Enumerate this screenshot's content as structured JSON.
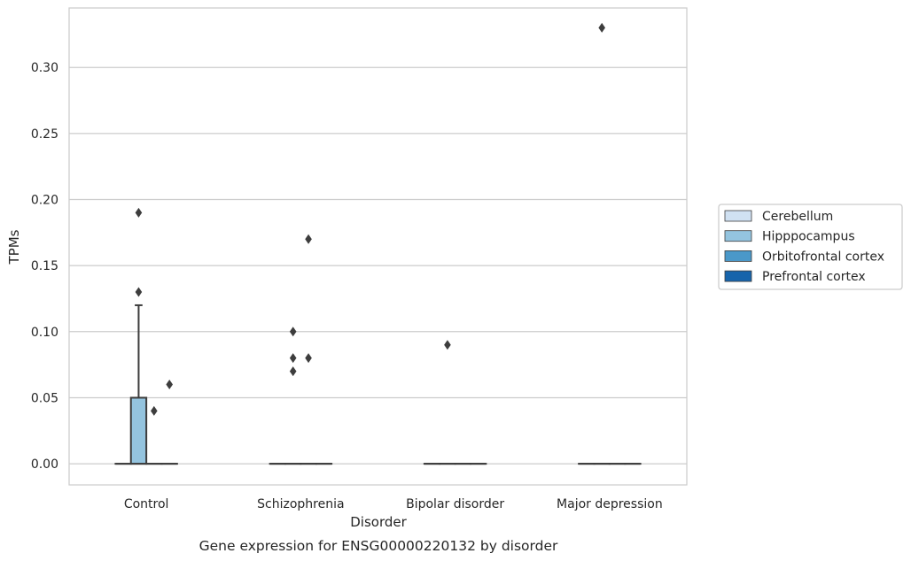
{
  "chart_data": {
    "type": "box",
    "title": "Gene expression for ENSG00000220132 by disorder",
    "xlabel": "Disorder",
    "ylabel": "TPMs",
    "ylim": [
      -0.016,
      0.345
    ],
    "yticks": [
      0.0,
      0.05,
      0.1,
      0.15,
      0.2,
      0.25,
      0.3
    ],
    "ytick_labels": [
      "0.00",
      "0.05",
      "0.10",
      "0.15",
      "0.20",
      "0.25",
      "0.30"
    ],
    "grid": "horizontal",
    "legend_position": "right",
    "categories": [
      "Control",
      "Schizophrenia",
      "Bipolar disorder",
      "Major depression"
    ],
    "series": [
      {
        "name": "Cerebellum",
        "color": "#d0e1f2",
        "boxes": [
          {
            "q1": 0,
            "median": 0,
            "q3": 0,
            "whisker_low": 0,
            "whisker_high": 0,
            "outliers": []
          },
          {
            "q1": 0,
            "median": 0,
            "q3": 0,
            "whisker_low": 0,
            "whisker_high": 0,
            "outliers": []
          },
          {
            "q1": 0,
            "median": 0,
            "q3": 0,
            "whisker_low": 0,
            "whisker_high": 0,
            "outliers": []
          },
          {
            "q1": 0,
            "median": 0,
            "q3": 0,
            "whisker_low": 0,
            "whisker_high": 0,
            "outliers": []
          }
        ]
      },
      {
        "name": "Hipppocampus",
        "color": "#94c4df",
        "boxes": [
          {
            "q1": 0,
            "median": 0,
            "q3": 0.05,
            "whisker_low": 0,
            "whisker_high": 0.12,
            "outliers": [
              0.13,
              0.19
            ]
          },
          {
            "q1": 0,
            "median": 0,
            "q3": 0,
            "whisker_low": 0,
            "whisker_high": 0,
            "outliers": [
              0.07,
              0.08,
              0.1
            ]
          },
          {
            "q1": 0,
            "median": 0,
            "q3": 0,
            "whisker_low": 0,
            "whisker_high": 0,
            "outliers": [
              0.09
            ]
          },
          {
            "q1": 0,
            "median": 0,
            "q3": 0,
            "whisker_low": 0,
            "whisker_high": 0,
            "outliers": [
              0.33
            ]
          }
        ]
      },
      {
        "name": "Orbitofrontal cortex",
        "color": "#4a98c9",
        "boxes": [
          {
            "q1": 0,
            "median": 0,
            "q3": 0,
            "whisker_low": 0,
            "whisker_high": 0,
            "outliers": [
              0.04
            ]
          },
          {
            "q1": 0,
            "median": 0,
            "q3": 0,
            "whisker_low": 0,
            "whisker_high": 0,
            "outliers": [
              0.08,
              0.17
            ]
          },
          {
            "q1": 0,
            "median": 0,
            "q3": 0,
            "whisker_low": 0,
            "whisker_high": 0,
            "outliers": []
          },
          {
            "q1": 0,
            "median": 0,
            "q3": 0,
            "whisker_low": 0,
            "whisker_high": 0,
            "outliers": []
          }
        ]
      },
      {
        "name": "Prefrontal cortex",
        "color": "#1764ab",
        "boxes": [
          {
            "q1": 0,
            "median": 0,
            "q3": 0,
            "whisker_low": 0,
            "whisker_high": 0,
            "outliers": [
              0.06
            ]
          },
          {
            "q1": 0,
            "median": 0,
            "q3": 0,
            "whisker_low": 0,
            "whisker_high": 0,
            "outliers": []
          },
          {
            "q1": 0,
            "median": 0,
            "q3": 0,
            "whisker_low": 0,
            "whisker_high": 0,
            "outliers": []
          },
          {
            "q1": 0,
            "median": 0,
            "q3": 0,
            "whisker_low": 0,
            "whisker_high": 0,
            "outliers": []
          }
        ]
      }
    ]
  }
}
